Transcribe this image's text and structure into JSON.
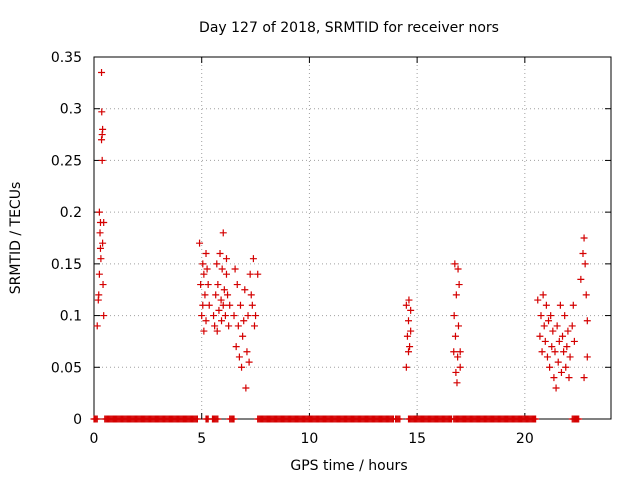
{
  "chart_data": {
    "type": "scatter",
    "title": "Day 127 of 2018, SRMTID for receiver nors",
    "xlabel": "GPS time / hours",
    "ylabel": "SRMTID / TECUs",
    "xlim": [
      0,
      24
    ],
    "ylim": [
      0,
      0.35
    ],
    "xticks": [
      0,
      5,
      10,
      15,
      20
    ],
    "xtick_labels": [
      "0",
      "5",
      "10",
      "15",
      "20"
    ],
    "yticks": [
      0,
      0.05,
      0.1,
      0.15,
      0.2,
      0.25,
      0.3,
      0.35
    ],
    "ytick_labels": [
      "0",
      "0.05",
      "0.1",
      "0.15",
      "0.2",
      "0.25",
      "0.3",
      "0.35"
    ],
    "grid": true,
    "marker": "+",
    "colors": {
      "marker": "#d40000",
      "axis": "#000000",
      "grid": "#a0a0a0"
    },
    "series": [
      {
        "name": "SRMTID",
        "points": [
          [
            0.15,
            0.09
          ],
          [
            0.2,
            0.115
          ],
          [
            0.22,
            0.12
          ],
          [
            0.25,
            0.14
          ],
          [
            0.25,
            0.2
          ],
          [
            0.28,
            0.18
          ],
          [
            0.3,
            0.165
          ],
          [
            0.3,
            0.19
          ],
          [
            0.32,
            0.155
          ],
          [
            0.35,
            0.27
          ],
          [
            0.35,
            0.335
          ],
          [
            0.36,
            0.297
          ],
          [
            0.38,
            0.275
          ],
          [
            0.38,
            0.25
          ],
          [
            0.4,
            0.28
          ],
          [
            0.4,
            0.17
          ],
          [
            0.42,
            0.13
          ],
          [
            0.45,
            0.19
          ],
          [
            0.45,
            0.1
          ],
          [
            4.9,
            0.17
          ],
          [
            4.95,
            0.13
          ],
          [
            5.0,
            0.1
          ],
          [
            5.05,
            0.15
          ],
          [
            5.05,
            0.11
          ],
          [
            5.1,
            0.085
          ],
          [
            5.1,
            0.14
          ],
          [
            5.15,
            0.12
          ],
          [
            5.2,
            0.16
          ],
          [
            5.2,
            0.095
          ],
          [
            5.25,
            0.145
          ],
          [
            5.3,
            0.13
          ],
          [
            5.35,
            0.11
          ],
          [
            5.55,
            0.1
          ],
          [
            5.6,
            0.09
          ],
          [
            5.65,
            0.12
          ],
          [
            5.7,
            0.15
          ],
          [
            5.72,
            0.085
          ],
          [
            5.75,
            0.13
          ],
          [
            5.8,
            0.105
          ],
          [
            5.85,
            0.16
          ],
          [
            5.9,
            0.115
          ],
          [
            5.92,
            0.095
          ],
          [
            5.95,
            0.145
          ],
          [
            6.0,
            0.11
          ],
          [
            6.0,
            0.18
          ],
          [
            6.05,
            0.125
          ],
          [
            6.1,
            0.1
          ],
          [
            6.15,
            0.155
          ],
          [
            6.15,
            0.14
          ],
          [
            6.2,
            0.12
          ],
          [
            6.25,
            0.09
          ],
          [
            6.3,
            0.11
          ],
          [
            6.5,
            0.1
          ],
          [
            6.55,
            0.145
          ],
          [
            6.6,
            0.07
          ],
          [
            6.65,
            0.13
          ],
          [
            6.7,
            0.09
          ],
          [
            6.75,
            0.06
          ],
          [
            6.8,
            0.11
          ],
          [
            6.85,
            0.05
          ],
          [
            6.9,
            0.08
          ],
          [
            6.95,
            0.095
          ],
          [
            7.0,
            0.125
          ],
          [
            7.05,
            0.03
          ],
          [
            7.1,
            0.065
          ],
          [
            7.15,
            0.1
          ],
          [
            7.2,
            0.055
          ],
          [
            7.25,
            0.14
          ],
          [
            7.3,
            0.12
          ],
          [
            7.35,
            0.11
          ],
          [
            7.4,
            0.155
          ],
          [
            7.45,
            0.09
          ],
          [
            7.5,
            0.1
          ],
          [
            7.6,
            0.14
          ],
          [
            14.5,
            0.05
          ],
          [
            14.5,
            0.11
          ],
          [
            14.55,
            0.08
          ],
          [
            14.6,
            0.065
          ],
          [
            14.6,
            0.095
          ],
          [
            14.62,
            0.115
          ],
          [
            14.65,
            0.07
          ],
          [
            14.7,
            0.105
          ],
          [
            14.7,
            0.085
          ],
          [
            16.7,
            0.065
          ],
          [
            16.72,
            0.1
          ],
          [
            16.75,
            0.15
          ],
          [
            16.78,
            0.08
          ],
          [
            16.8,
            0.045
          ],
          [
            16.82,
            0.12
          ],
          [
            16.85,
            0.035
          ],
          [
            16.88,
            0.06
          ],
          [
            16.9,
            0.145
          ],
          [
            16.92,
            0.09
          ],
          [
            16.95,
            0.13
          ],
          [
            17.0,
            0.065
          ],
          [
            17.0,
            0.05
          ],
          [
            20.6,
            0.115
          ],
          [
            20.7,
            0.08
          ],
          [
            20.75,
            0.1
          ],
          [
            20.8,
            0.065
          ],
          [
            20.85,
            0.12
          ],
          [
            20.9,
            0.09
          ],
          [
            20.95,
            0.075
          ],
          [
            21.0,
            0.11
          ],
          [
            21.05,
            0.06
          ],
          [
            21.1,
            0.095
          ],
          [
            21.15,
            0.05
          ],
          [
            21.2,
            0.1
          ],
          [
            21.25,
            0.07
          ],
          [
            21.3,
            0.085
          ],
          [
            21.35,
            0.04
          ],
          [
            21.4,
            0.065
          ],
          [
            21.45,
            0.03
          ],
          [
            21.5,
            0.09
          ],
          [
            21.55,
            0.055
          ],
          [
            21.6,
            0.075
          ],
          [
            21.65,
            0.11
          ],
          [
            21.7,
            0.045
          ],
          [
            21.75,
            0.08
          ],
          [
            21.8,
            0.065
          ],
          [
            21.85,
            0.1
          ],
          [
            21.9,
            0.05
          ],
          [
            21.95,
            0.07
          ],
          [
            22.0,
            0.085
          ],
          [
            22.05,
            0.04
          ],
          [
            22.1,
            0.06
          ],
          [
            22.2,
            0.09
          ],
          [
            22.25,
            0.11
          ],
          [
            22.3,
            0.075
          ],
          [
            22.6,
            0.135
          ],
          [
            22.7,
            0.16
          ],
          [
            22.75,
            0.175
          ],
          [
            22.75,
            0.04
          ],
          [
            22.8,
            0.15
          ],
          [
            22.85,
            0.12
          ],
          [
            22.9,
            0.095
          ],
          [
            22.9,
            0.06
          ]
        ],
        "zero_ranges": [
          [
            0.0,
            0.15
          ],
          [
            0.5,
            4.8
          ],
          [
            5.2,
            5.3
          ],
          [
            5.5,
            5.75
          ],
          [
            6.3,
            6.5
          ],
          [
            7.6,
            13.9
          ],
          [
            14.0,
            14.2
          ],
          [
            14.6,
            16.6
          ],
          [
            16.7,
            20.5
          ],
          [
            22.2,
            22.5
          ]
        ]
      }
    ]
  }
}
